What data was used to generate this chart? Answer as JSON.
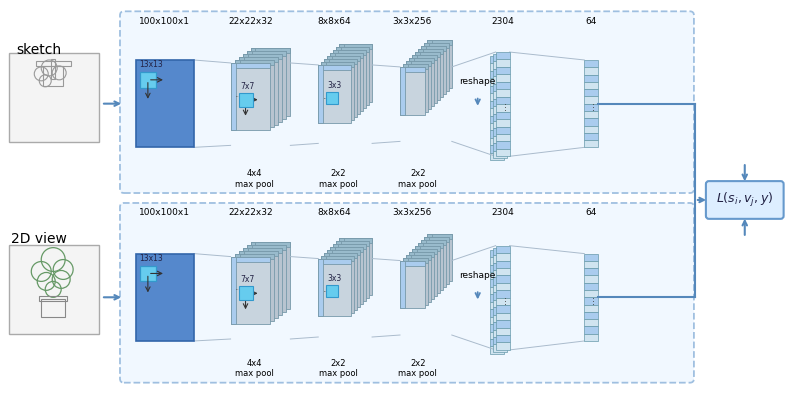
{
  "background": "#ffffff",
  "box_bg": "#e8f4ff",
  "box_border": "#6699cc",
  "blue_layer": "#5588cc",
  "gray_layer": "#b8c4d0",
  "gray_layer2": "#c8d4de",
  "blue_strip": "#aaccee",
  "blue_strip2": "#88aacc",
  "cyan_filter": "#66ccee",
  "arrow_color": "#5588bb",
  "loss_bg": "#ddeeff",
  "sketch_label": "sketch",
  "view_label": "2D view",
  "top_labels": [
    "100x100x1",
    "22x22x32",
    "8x8x64",
    "3x3x256",
    "2304",
    "64"
  ],
  "pool_labels_top": [
    "4x4\nmax pool",
    "2x2\nmax pool",
    "2x2\nmax pool"
  ],
  "conv_labels": [
    "13x13",
    "7x7",
    "3x3"
  ],
  "reshape_label": "reshape"
}
